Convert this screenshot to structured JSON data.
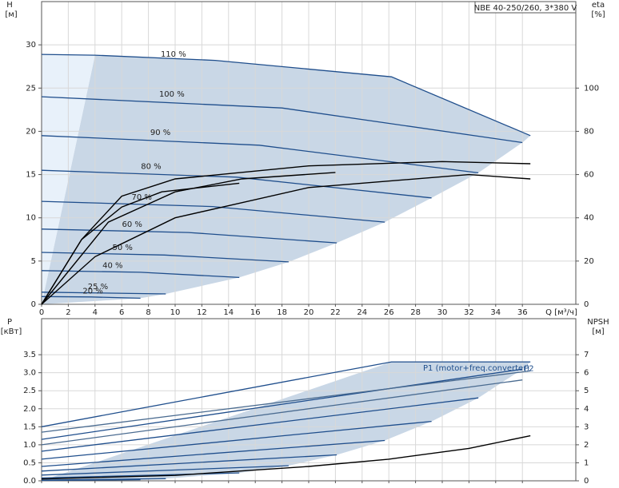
{
  "chart_data": [
    {
      "type": "line",
      "title": "NBE 40-250/260, 3*380 V",
      "y_label": "H",
      "y_unit": "[м]",
      "y2_label": "eta",
      "y2_unit": "[%]",
      "x_label": "Q [м³/ч]",
      "xlim": [
        0,
        40
      ],
      "xticks": [
        0,
        2,
        4,
        6,
        8,
        10,
        12,
        14,
        16,
        18,
        20,
        22,
        24,
        26,
        28,
        30,
        32,
        34,
        36
      ],
      "ylim": [
        0,
        35
      ],
      "yticks": [
        0,
        5,
        10,
        15,
        20,
        25,
        30
      ],
      "y2lim": [
        0,
        140
      ],
      "y2ticks": [
        0,
        20,
        40,
        60,
        80,
        100
      ],
      "grid": true,
      "series": [
        {
          "name": "110 %",
          "color": "#1f4e8c",
          "x": [
            0,
            4,
            13,
            26.2,
            36.6
          ],
          "values": [
            28.9,
            28.8,
            28.2,
            26.3,
            19.5
          ]
        },
        {
          "name": "100 %",
          "color": "#1f4e8c",
          "x": [
            0,
            18,
            36
          ],
          "values": [
            24,
            22.7,
            18.7
          ]
        },
        {
          "name": "90 %",
          "color": "#1f4e8c",
          "x": [
            0,
            16.3,
            32.7
          ],
          "values": [
            19.5,
            18.4,
            15.2
          ]
        },
        {
          "name": "80 %",
          "color": "#1f4e8c",
          "x": [
            0,
            14.6,
            29.2
          ],
          "values": [
            15.5,
            14.7,
            12.3
          ]
        },
        {
          "name": "70 %",
          "color": "#1f4e8c",
          "x": [
            0,
            12.8,
            25.7
          ],
          "values": [
            11.9,
            11.3,
            9.5
          ]
        },
        {
          "name": "60 %",
          "color": "#1f4e8c",
          "x": [
            0,
            11,
            22.1
          ],
          "values": [
            8.7,
            8.3,
            7.1
          ]
        },
        {
          "name": "50 %",
          "color": "#1f4e8c",
          "x": [
            0,
            9.2,
            18.5
          ],
          "values": [
            6,
            5.7,
            4.9
          ]
        },
        {
          "name": "40 %",
          "color": "#1f4e8c",
          "x": [
            0,
            7.4,
            14.8
          ],
          "values": [
            3.9,
            3.7,
            3.1
          ]
        },
        {
          "name": "25 %",
          "color": "#1f4e8c",
          "x": [
            0,
            4.6,
            9.3
          ],
          "values": [
            1.4,
            1.3,
            1.2
          ]
        },
        {
          "name": "20 %",
          "color": "#1f4e8c",
          "x": [
            0,
            3.7,
            7.4
          ],
          "values": [
            0.9,
            0.85,
            0.7
          ]
        },
        {
          "axis": "y2",
          "color": "#000000",
          "x": [
            0,
            4,
            10,
            20,
            32,
            36.6
          ],
          "values": [
            0,
            22,
            40,
            54,
            60,
            58
          ]
        },
        {
          "axis": "y2",
          "color": "#000000",
          "x": [
            0,
            3,
            6,
            10,
            20,
            30,
            36.6
          ],
          "values": [
            0,
            30,
            50,
            58,
            64,
            66,
            65
          ]
        },
        {
          "axis": "y2",
          "color": "#000000",
          "x": [
            0,
            5,
            10,
            15,
            22
          ],
          "values": [
            0,
            38,
            52,
            58,
            61
          ]
        },
        {
          "axis": "y2",
          "color": "#000000",
          "x": [
            0,
            3,
            6,
            9,
            14.8
          ],
          "values": [
            0,
            30,
            45,
            52,
            56
          ]
        }
      ]
    },
    {
      "type": "line",
      "y_label": "P",
      "y_unit": "[кВт]",
      "y2_label": "NPSH",
      "y2_unit": "[м]",
      "xlim": [
        0,
        40
      ],
      "xticks": [
        0,
        2,
        4,
        6,
        8,
        10,
        12,
        14,
        16,
        18,
        20,
        22,
        24,
        26,
        28,
        30,
        32,
        34,
        36
      ],
      "ylim": [
        0,
        4.5
      ],
      "yticks": [
        {
          "value": 0,
          "label": "0.0"
        },
        0.5,
        {
          "value": 1,
          "label": "1.0"
        },
        1.5,
        {
          "value": 2,
          "label": "2.0"
        },
        2.5,
        {
          "value": 3,
          "label": "3.0"
        },
        3.5
      ],
      "y2lim": [
        0,
        9
      ],
      "y2ticks": [
        0,
        1,
        2,
        3,
        4,
        5,
        6,
        7
      ],
      "grid": true,
      "annotations": [
        "P1 (motor+freq.converter)",
        "P2"
      ],
      "series": [
        {
          "color": "#1f4e8c",
          "x": [
            0,
            26.2,
            36.6
          ],
          "values": [
            1.5,
            3.3,
            3.3
          ]
        },
        {
          "color": "#1f4e8c",
          "x": [
            0,
            36
          ],
          "values": [
            1.15,
            3.1
          ]
        },
        {
          "color": "#1f4e8c",
          "x": [
            0,
            32.7
          ],
          "values": [
            0.82,
            2.3
          ]
        },
        {
          "color": "#1f4e8c",
          "x": [
            0,
            29.2
          ],
          "values": [
            0.6,
            1.65
          ]
        },
        {
          "color": "#1f4e8c",
          "x": [
            0,
            25.7
          ],
          "values": [
            0.4,
            1.12
          ]
        },
        {
          "color": "#1f4e8c",
          "x": [
            0,
            22.1
          ],
          "values": [
            0.27,
            0.72
          ]
        },
        {
          "color": "#1f4e8c",
          "x": [
            0,
            18.5
          ],
          "values": [
            0.16,
            0.42
          ]
        },
        {
          "color": "#1f4e8c",
          "x": [
            0,
            14.8
          ],
          "values": [
            0.08,
            0.22
          ]
        },
        {
          "color": "#1f4e8c",
          "x": [
            0,
            9.3
          ],
          "values": [
            0.02,
            0.06
          ]
        },
        {
          "color": "#1f4e8c",
          "x": [
            0,
            7.4
          ],
          "values": [
            0.01,
            0.03
          ]
        },
        {
          "color": "#4a6b90",
          "x": [
            0,
            36.6
          ],
          "values": [
            1.35,
            3.05
          ]
        },
        {
          "color": "#4a6b90",
          "x": [
            0,
            36
          ],
          "values": [
            1.0,
            2.8
          ]
        },
        {
          "axis": "y2",
          "color": "#000000",
          "x": [
            0,
            10,
            20,
            26,
            32,
            36.6
          ],
          "values": [
            0.1,
            0.3,
            0.8,
            1.2,
            1.8,
            2.5
          ]
        }
      ]
    }
  ]
}
